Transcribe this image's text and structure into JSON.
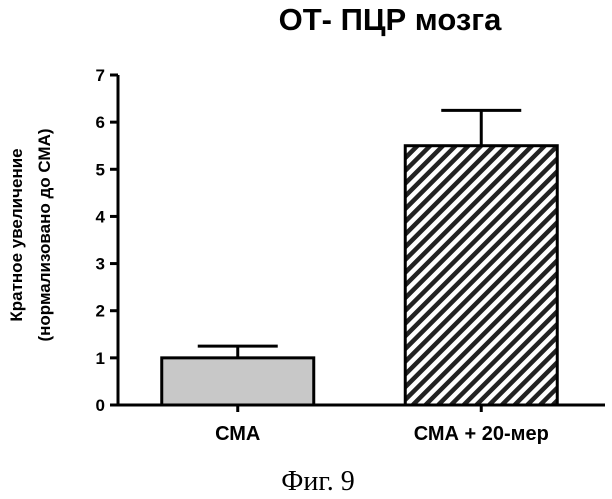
{
  "chart_data": {
    "type": "bar",
    "title": "ОТ- ПЦР мозга",
    "ylabel_line1": "Кратное увеличение",
    "ylabel_line2": "(нормализовано до СМА)",
    "xlabel": "",
    "categories": [
      "СМА",
      "СМА + 20-мер"
    ],
    "values": [
      1.0,
      5.5
    ],
    "error_upper": [
      1.25,
      6.25
    ],
    "ylim": [
      0,
      7
    ],
    "yticks": [
      0,
      1,
      2,
      3,
      4,
      5,
      6,
      7
    ],
    "bar_fills": [
      "light-gray",
      "diagonal-hatch"
    ],
    "colors": {
      "axis": "#000000",
      "bar1": "#c8c8c8",
      "hatch": "#222222"
    },
    "grid": false
  },
  "caption": "Фиг. 9"
}
